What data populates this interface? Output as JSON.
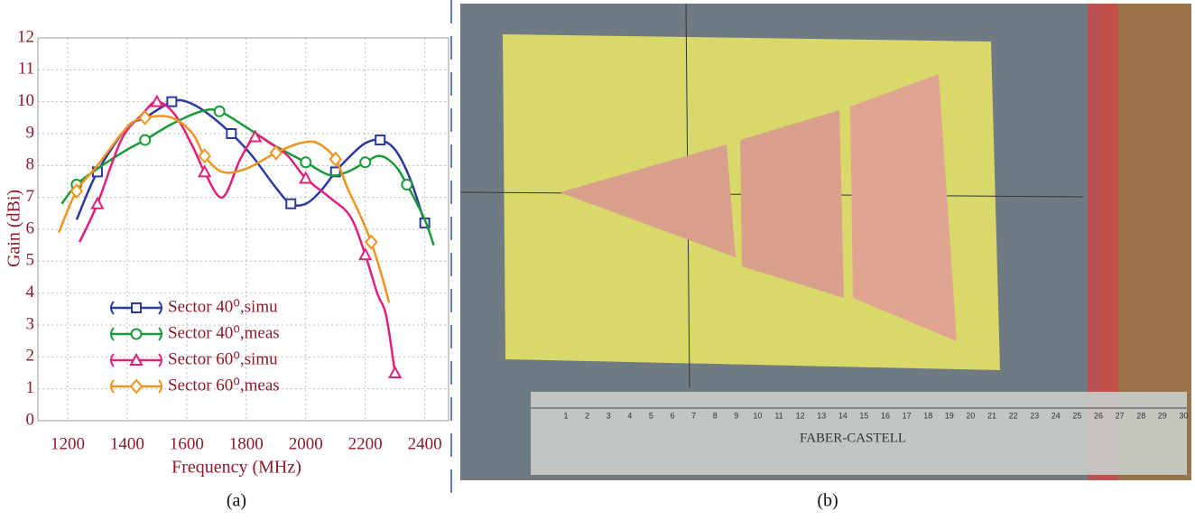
{
  "chart_data": {
    "type": "line",
    "x_label": "Frequency (MHz)",
    "y_label": "Gain (dBi)",
    "xlim": [
      1100,
      2480
    ],
    "ylim": [
      0,
      12
    ],
    "xticks": [
      1200,
      1400,
      1600,
      1800,
      2000,
      2200,
      2400
    ],
    "yticks": [
      0,
      1,
      2,
      3,
      4,
      5,
      6,
      7,
      8,
      9,
      10,
      11,
      12
    ],
    "grid": true,
    "series": [
      {
        "name": "Sector 40⁰,simu",
        "color": "#2b3aa0",
        "marker": "square",
        "x": [
          1230,
          1300,
          1400,
          1460,
          1550,
          1600,
          1660,
          1750,
          1820,
          1900,
          1950,
          2000,
          2050,
          2100,
          2150,
          2200,
          2250,
          2300,
          2350,
          2400
        ],
        "values": [
          6.3,
          7.8,
          9.2,
          9.5,
          10.0,
          10.0,
          9.7,
          9.0,
          8.3,
          7.3,
          6.8,
          6.8,
          7.2,
          7.8,
          8.3,
          8.7,
          8.8,
          8.5,
          7.6,
          6.2
        ]
      },
      {
        "name": "Sector 40⁰,meas",
        "color": "#1a9a3a",
        "marker": "circle",
        "x": [
          1180,
          1230,
          1300,
          1400,
          1460,
          1550,
          1650,
          1710,
          1800,
          1900,
          2000,
          2080,
          2140,
          2200,
          2250,
          2300,
          2340,
          2400,
          2430
        ],
        "values": [
          6.8,
          7.4,
          7.9,
          8.5,
          8.8,
          9.3,
          9.7,
          9.7,
          9.2,
          8.6,
          8.1,
          7.7,
          7.8,
          8.1,
          8.3,
          8.0,
          7.4,
          6.3,
          5.5
        ]
      },
      {
        "name": "Sector 60⁰,simu",
        "color": "#e0207a",
        "marker": "triangle",
        "x": [
          1240,
          1300,
          1380,
          1450,
          1500,
          1560,
          1620,
          1660,
          1720,
          1780,
          1830,
          1880,
          1940,
          2000,
          2080,
          2150,
          2200,
          2240,
          2270,
          2300
        ],
        "values": [
          5.6,
          6.8,
          8.8,
          9.6,
          10.0,
          9.6,
          8.6,
          7.8,
          7.0,
          8.2,
          8.9,
          8.7,
          8.3,
          7.6,
          7.0,
          6.4,
          5.2,
          4.0,
          3.3,
          1.5
        ]
      },
      {
        "name": "Sector 60⁰,meas",
        "color": "#f0941e",
        "marker": "diamond",
        "x": [
          1170,
          1230,
          1300,
          1400,
          1460,
          1550,
          1620,
          1660,
          1720,
          1800,
          1900,
          1980,
          2040,
          2100,
          2140,
          2180,
          2220,
          2260,
          2280
        ],
        "values": [
          5.9,
          7.2,
          8.0,
          9.2,
          9.5,
          9.5,
          9.0,
          8.3,
          7.8,
          7.9,
          8.4,
          8.7,
          8.7,
          8.2,
          7.3,
          6.5,
          5.6,
          4.4,
          3.7
        ]
      }
    ]
  },
  "captions": [
    "(a)",
    "(b)"
  ],
  "photo": {
    "ruler_brand": "FABER-CASTELL",
    "ruler_numbers": [
      1,
      2,
      3,
      4,
      5,
      6,
      7,
      8,
      9,
      10,
      11,
      12,
      13,
      14,
      15,
      16,
      17,
      18,
      19,
      20,
      21,
      22,
      23,
      24,
      25,
      26,
      27,
      28,
      29,
      30
    ]
  }
}
